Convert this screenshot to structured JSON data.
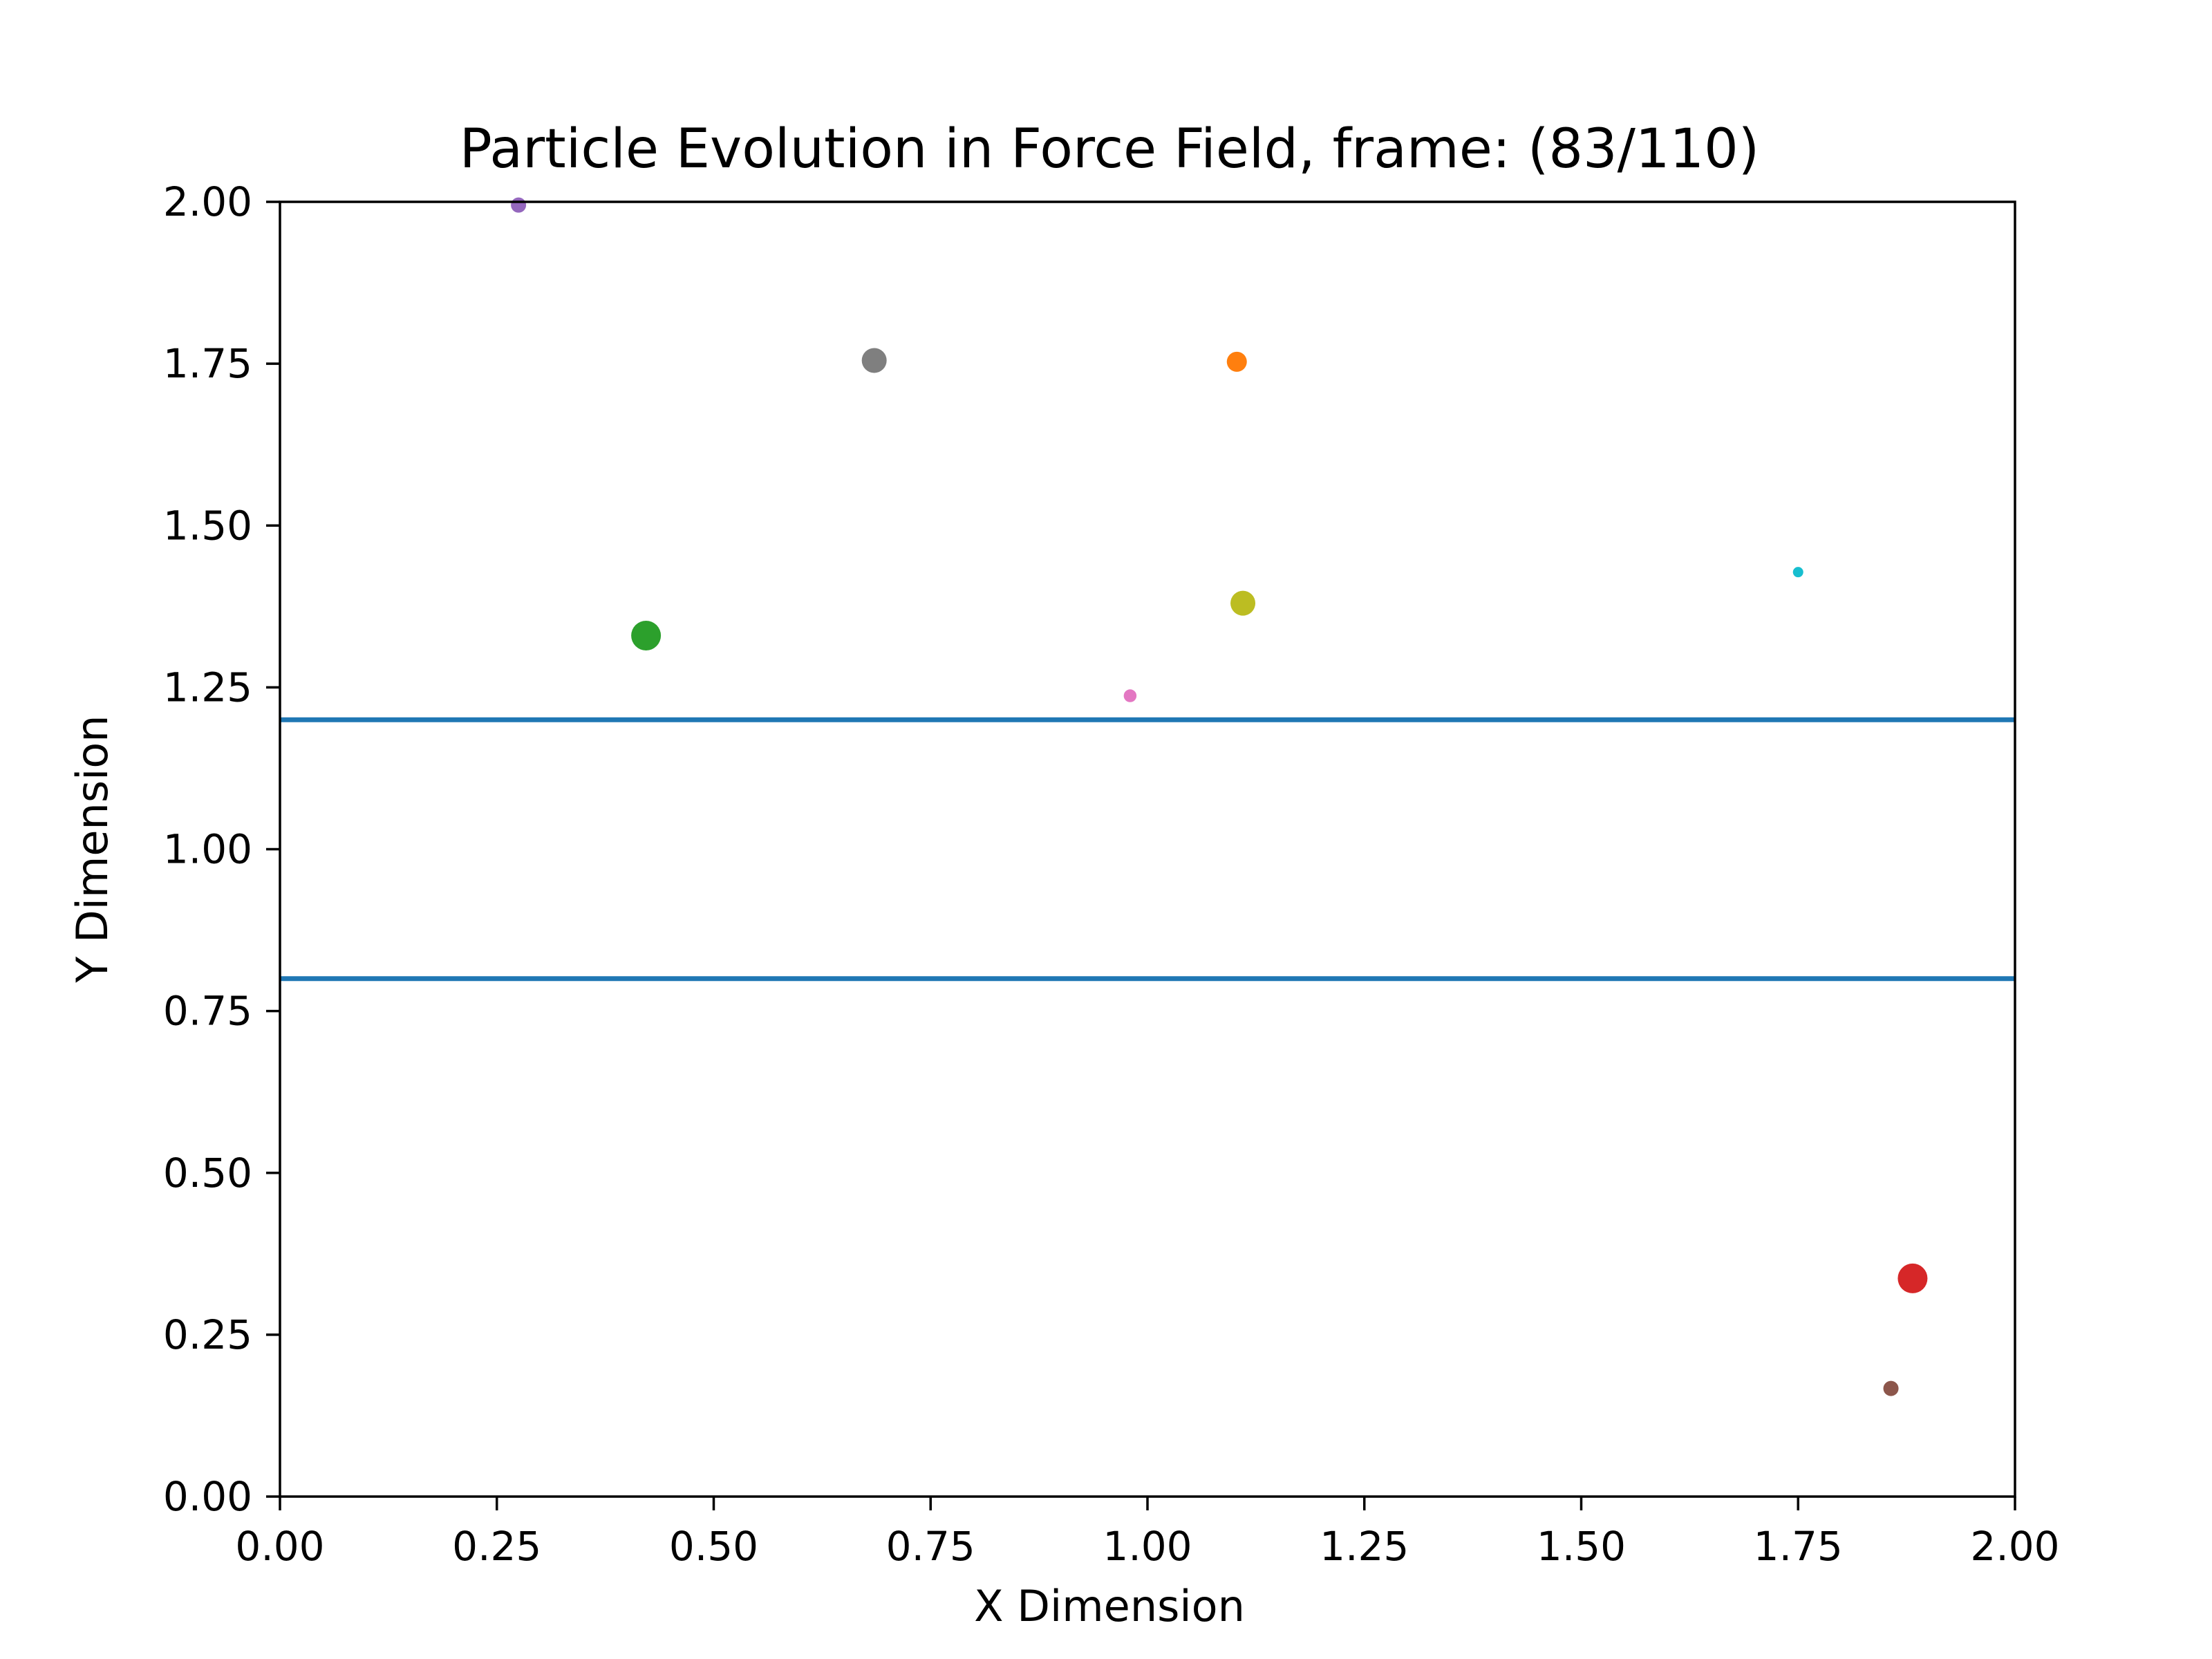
{
  "chart_data": {
    "type": "scatter",
    "title": "Particle Evolution in Force Field, frame: (83/110)",
    "xlabel": "X Dimension",
    "ylabel": "Y Dimension",
    "xlim": [
      0,
      2
    ],
    "ylim": [
      0,
      2
    ],
    "grid": false,
    "x_ticks": [
      "0.00",
      "0.25",
      "0.50",
      "0.75",
      "1.00",
      "1.25",
      "1.50",
      "1.75",
      "2.00"
    ],
    "y_ticks": [
      "0.00",
      "0.25",
      "0.50",
      "0.75",
      "1.00",
      "1.25",
      "1.50",
      "1.75",
      "2.00"
    ],
    "hlines": [
      {
        "y": 1.2,
        "color": "#1f77b4"
      },
      {
        "y": 0.8,
        "color": "#1f77b4"
      }
    ],
    "points": [
      {
        "x": 0.275,
        "y": 1.995,
        "size": 4,
        "color": "#9467bd"
      },
      {
        "x": 0.685,
        "y": 1.755,
        "size": 8,
        "color": "#7f7f7f"
      },
      {
        "x": 1.103,
        "y": 1.753,
        "size": 6,
        "color": "#ff7f0e"
      },
      {
        "x": 1.75,
        "y": 1.428,
        "size": 2,
        "color": "#17becf"
      },
      {
        "x": 0.422,
        "y": 1.33,
        "size": 10,
        "color": "#2ca02c"
      },
      {
        "x": 1.11,
        "y": 1.38,
        "size": 8,
        "color": "#bcbd22"
      },
      {
        "x": 0.98,
        "y": 1.237,
        "size": 3,
        "color": "#e377c2"
      },
      {
        "x": 1.882,
        "y": 0.337,
        "size": 10,
        "color": "#d62728"
      },
      {
        "x": 1.857,
        "y": 0.167,
        "size": 4,
        "color": "#8c564b"
      }
    ]
  }
}
